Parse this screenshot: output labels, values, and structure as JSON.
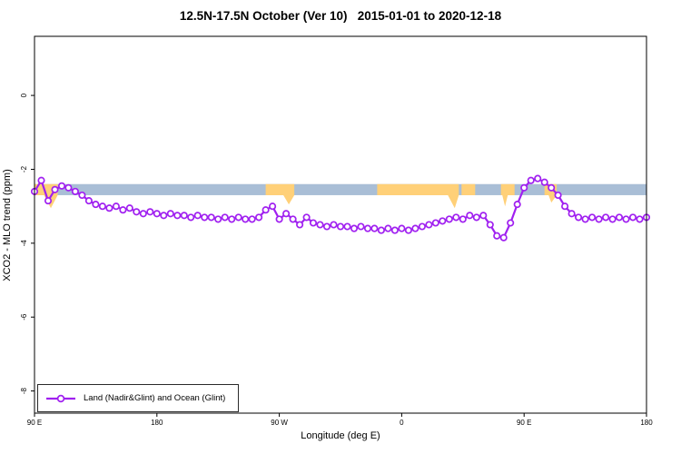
{
  "chart_data": {
    "type": "line",
    "title": "12.5N-17.5N October (Ver 10)   2015-01-01 to 2020-12-18",
    "xlabel": "Longitude (deg E)",
    "ylabel": "XCO2 - MLO trend (ppm)",
    "xlim": [
      90,
      540
    ],
    "ylim": [
      -8.6,
      1.6
    ],
    "grid": false,
    "legend_position": "bottom-left",
    "x_ticks": [
      {
        "lon": 90,
        "label": "90 E"
      },
      {
        "lon": 180,
        "label": "180"
      },
      {
        "lon": 270,
        "label": "90 W"
      },
      {
        "lon": 360,
        "label": "0"
      },
      {
        "lon": 450,
        "label": "90 E"
      },
      {
        "lon": 540,
        "label": "180"
      }
    ],
    "y_ticks": [
      {
        "value": 0,
        "label": "0"
      },
      {
        "value": -2,
        "label": "-2"
      },
      {
        "value": -4,
        "label": "-4"
      },
      {
        "value": -6,
        "label": "-6"
      },
      {
        "value": -8,
        "label": "-8"
      }
    ],
    "band": {
      "name": "ocean-glint-band",
      "color": "#A9BED6",
      "from": 90,
      "to": 540,
      "top": -2.4,
      "bottom": -2.7
    },
    "patches": [
      {
        "name": "land-patch-1",
        "color": "#FFD078",
        "points": [
          [
            90,
            -2.4
          ],
          [
            107,
            -2.4
          ],
          [
            107,
            -2.7
          ],
          [
            102,
            -3.05
          ],
          [
            97,
            -2.7
          ],
          [
            90,
            -2.7
          ]
        ]
      },
      {
        "name": "land-patch-2",
        "color": "#FFD078",
        "points": [
          [
            260,
            -2.4
          ],
          [
            281,
            -2.4
          ],
          [
            281,
            -2.7
          ],
          [
            277,
            -2.95
          ],
          [
            273,
            -2.7
          ],
          [
            260,
            -2.7
          ]
        ]
      },
      {
        "name": "land-patch-3",
        "color": "#FFD078",
        "points": [
          [
            342,
            -2.4
          ],
          [
            402,
            -2.4
          ],
          [
            402,
            -2.7
          ],
          [
            399,
            -3.05
          ],
          [
            394,
            -2.7
          ],
          [
            342,
            -2.7
          ]
        ]
      },
      {
        "name": "land-patch-4",
        "color": "#FFD078",
        "points": [
          [
            404,
            -2.4
          ],
          [
            414,
            -2.4
          ],
          [
            414,
            -2.7
          ],
          [
            404,
            -2.7
          ]
        ]
      },
      {
        "name": "land-patch-5",
        "color": "#FFD078",
        "points": [
          [
            433,
            -2.4
          ],
          [
            443,
            -2.4
          ],
          [
            443,
            -2.7
          ],
          [
            438,
            -2.7
          ],
          [
            436,
            -3.0
          ],
          [
            434,
            -2.7
          ],
          [
            433,
            -2.7
          ]
        ]
      },
      {
        "name": "land-patch-6",
        "color": "#FFD078",
        "points": [
          [
            465,
            -2.4
          ],
          [
            474,
            -2.4
          ],
          [
            474,
            -2.7
          ],
          [
            470,
            -2.9
          ],
          [
            468,
            -2.7
          ],
          [
            465,
            -2.7
          ]
        ]
      }
    ],
    "series": [
      {
        "name": "Land (Nadir&Glint) and Ocean (Glint)",
        "color": "#A020F0",
        "marker": "open-circle",
        "x": [
          90,
          95,
          100,
          105,
          110,
          115,
          120,
          125,
          130,
          135,
          140,
          145,
          150,
          155,
          160,
          165,
          170,
          175,
          180,
          185,
          190,
          195,
          200,
          205,
          210,
          215,
          220,
          225,
          230,
          235,
          240,
          245,
          250,
          255,
          260,
          265,
          270,
          275,
          280,
          285,
          290,
          295,
          300,
          305,
          310,
          315,
          320,
          325,
          330,
          335,
          340,
          345,
          350,
          355,
          360,
          365,
          370,
          375,
          380,
          385,
          390,
          395,
          400,
          405,
          410,
          415,
          420,
          425,
          430,
          435,
          440,
          445,
          450,
          455,
          460,
          465,
          470,
          475,
          480,
          485,
          490,
          495,
          500,
          505,
          510,
          515,
          520,
          525,
          530,
          535,
          540
        ],
        "y": [
          -2.6,
          -2.3,
          -2.85,
          -2.55,
          -2.45,
          -2.5,
          -2.6,
          -2.7,
          -2.85,
          -2.95,
          -3.0,
          -3.05,
          -3.0,
          -3.1,
          -3.05,
          -3.15,
          -3.2,
          -3.15,
          -3.2,
          -3.25,
          -3.2,
          -3.25,
          -3.25,
          -3.3,
          -3.25,
          -3.3,
          -3.3,
          -3.35,
          -3.3,
          -3.35,
          -3.3,
          -3.35,
          -3.35,
          -3.3,
          -3.1,
          -3.0,
          -3.35,
          -3.2,
          -3.35,
          -3.5,
          -3.3,
          -3.45,
          -3.5,
          -3.55,
          -3.5,
          -3.55,
          -3.55,
          -3.6,
          -3.55,
          -3.6,
          -3.6,
          -3.65,
          -3.6,
          -3.65,
          -3.6,
          -3.65,
          -3.6,
          -3.55,
          -3.5,
          -3.45,
          -3.4,
          -3.35,
          -3.3,
          -3.35,
          -3.25,
          -3.3,
          -3.25,
          -3.5,
          -3.8,
          -3.85,
          -3.45,
          -2.95,
          -2.5,
          -2.3,
          -2.25,
          -2.35,
          -2.5,
          -2.7,
          -3.0,
          -3.2,
          -3.3,
          -3.35,
          -3.3,
          -3.35,
          -3.3,
          -3.35,
          -3.3,
          -3.35,
          -3.3,
          -3.35,
          -3.3
        ]
      }
    ]
  }
}
